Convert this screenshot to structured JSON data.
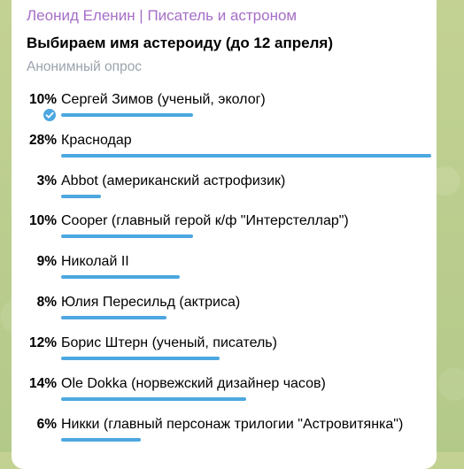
{
  "poll": {
    "sender": "Леонид Еленин | Писатель и астроном",
    "question": "Выбираем имя астероиду (до 12 апреля)",
    "type": "Анонимный опрос",
    "options": [
      {
        "percent": "10%",
        "value": 10,
        "label": "Сергей Зимов (ученый, эколог)",
        "selected": true
      },
      {
        "percent": "28%",
        "value": 28,
        "label": "Краснодар",
        "selected": false
      },
      {
        "percent": "3%",
        "value": 3,
        "label": "Abbot (американский астрофизик)",
        "selected": false
      },
      {
        "percent": "10%",
        "value": 10,
        "label": "Cooper (главный герой к/ф \"Интерстеллар\")",
        "selected": false
      },
      {
        "percent": "9%",
        "value": 9,
        "label": "Николай II",
        "selected": false
      },
      {
        "percent": "8%",
        "value": 8,
        "label": "Юлия Пересильд (актриса)",
        "selected": false
      },
      {
        "percent": "12%",
        "value": 12,
        "label": "Борис Штерн (ученый, писатель)",
        "selected": false
      },
      {
        "percent": "14%",
        "value": 14,
        "label": "Ole Dokka (норвежский дизайнер часов)",
        "selected": false
      },
      {
        "percent": "6%",
        "value": 6,
        "label": "Никки (главный персонаж трилогии \"Астровитянка\")",
        "selected": false
      }
    ]
  },
  "colors": {
    "bar": "#4da7e0",
    "sender": "#a66ec7",
    "muted": "#9aa3ad"
  }
}
